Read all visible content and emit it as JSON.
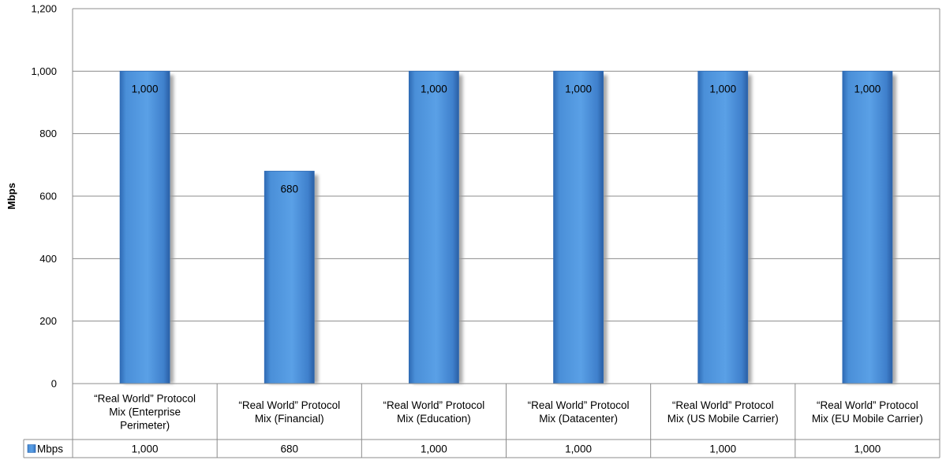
{
  "chart_data": {
    "type": "bar",
    "title": "",
    "xlabel": "",
    "ylabel": "Mbps",
    "ylim": [
      0,
      1200
    ],
    "yticks": [
      "0",
      "200",
      "400",
      "600",
      "800",
      "1,000",
      "1,200"
    ],
    "ytick_values": [
      0,
      200,
      400,
      600,
      800,
      1000,
      1200
    ],
    "grid": true,
    "categories": [
      "“Real World” Protocol Mix (Enterprise Perimeter)",
      "“Real World” Protocol Mix (Financial)",
      "“Real World” Protocol Mix (Education)",
      "“Real World” Protocol Mix (Datacenter)",
      "“Real World” Protocol Mix (US Mobile Carrier)",
      "“Real World” Protocol Mix (EU Mobile Carrier)"
    ],
    "category_lines": [
      [
        "“Real World” Protocol",
        "Mix (Enterprise",
        "Perimeter)"
      ],
      [
        "“Real World” Protocol",
        "Mix (Financial)"
      ],
      [
        "“Real World” Protocol",
        "Mix (Education)"
      ],
      [
        "“Real World” Protocol",
        "Mix (Datacenter)"
      ],
      [
        "“Real World” Protocol",
        "Mix (US Mobile Carrier)"
      ],
      [
        "“Real World” Protocol",
        "Mix (EU Mobile Carrier)"
      ]
    ],
    "series": [
      {
        "name": "Mbps",
        "values": [
          1000,
          680,
          1000,
          1000,
          1000,
          1000
        ],
        "labels": [
          "1,000",
          "680",
          "1,000",
          "1,000",
          "1,000",
          "1,000"
        ]
      }
    ],
    "legend": "data-table",
    "colors": {
      "bar": "#4a8fd8",
      "bar_dark": "#2f6bb5",
      "shadow": "#9a9a9a",
      "grid": "#8c8c8c"
    }
  }
}
